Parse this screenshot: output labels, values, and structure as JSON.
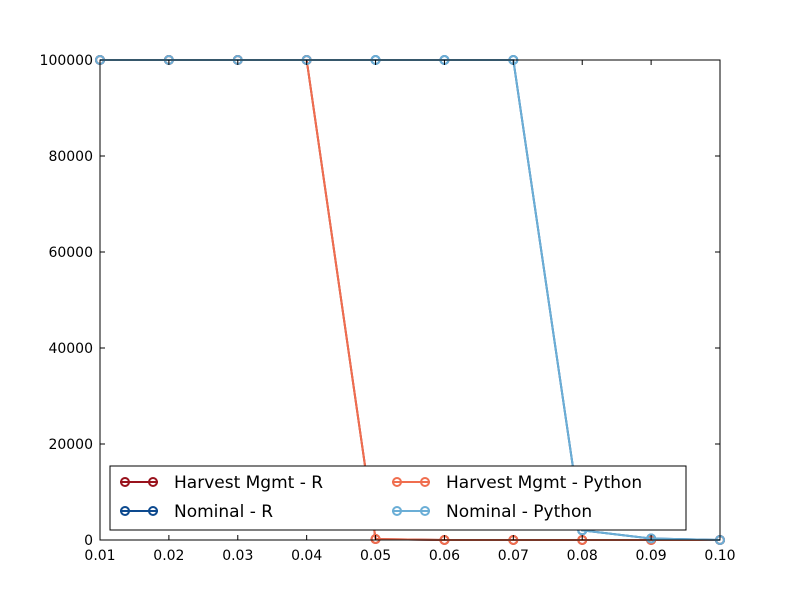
{
  "chart_data": {
    "type": "line",
    "title": "",
    "xlabel": "",
    "ylabel": "",
    "xlim": [
      0.01,
      0.1
    ],
    "ylim": [
      0,
      100000
    ],
    "x": [
      0.01,
      0.02,
      0.03,
      0.04,
      0.05,
      0.06,
      0.07,
      0.08,
      0.09,
      0.1
    ],
    "x_ticks": [
      "0.01",
      "0.02",
      "0.03",
      "0.04",
      "0.05",
      "0.06",
      "0.07",
      "0.08",
      "0.09",
      "0.10"
    ],
    "y_ticks": [
      "0",
      "20000",
      "40000",
      "60000",
      "80000",
      "100000"
    ],
    "grid": false,
    "legend_position": "lower-center",
    "legend_columns": 2,
    "series": [
      {
        "name": "Harvest Mgmt - R",
        "color": "#99131d",
        "values": [
          100000,
          100000,
          100000,
          100000,
          200,
          0,
          0,
          0,
          0,
          0
        ]
      },
      {
        "name": "Nominal - R",
        "color": "#0d4a8f",
        "values": [
          100000,
          100000,
          100000,
          100000,
          100000,
          100000,
          100000,
          2000,
          300,
          0
        ]
      },
      {
        "name": "Harvest Mgmt - Python",
        "color": "#f06e4f",
        "values": [
          100000,
          100000,
          100000,
          100000,
          200,
          0,
          0,
          0,
          0,
          0
        ]
      },
      {
        "name": "Nominal - Python",
        "color": "#6baed6",
        "values": [
          100000,
          100000,
          100000,
          100000,
          100000,
          100000,
          100000,
          2000,
          300,
          0
        ]
      }
    ]
  }
}
